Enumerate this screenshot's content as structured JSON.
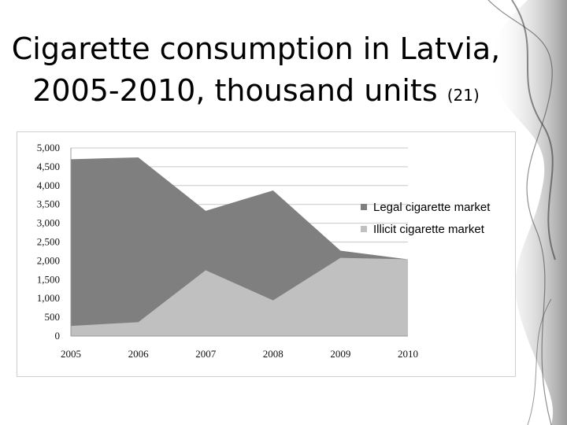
{
  "slide": {
    "title_line1": "Cigarette consumption in Latvia,",
    "title_line2": "2005-2010, thousand units",
    "title_ref": "(21)"
  },
  "colors": {
    "legal": "#7f7f7f",
    "illicit": "#c0c0c0",
    "grid": "#c8c8c8"
  },
  "chart_data": {
    "type": "area",
    "title": "Cigarette consumption in Latvia, 2005-2010, thousand units",
    "xlabel": "",
    "ylabel": "",
    "x": [
      "2005",
      "2006",
      "2007",
      "2008",
      "2009",
      "2010"
    ],
    "ylim": [
      0,
      5000
    ],
    "yticks": [
      0,
      500,
      1000,
      1500,
      2000,
      2500,
      3000,
      3500,
      4000,
      4500,
      5000
    ],
    "ytick_labels": [
      "0",
      "500",
      "1,000",
      "1,500",
      "2,000",
      "2,500",
      "3,000",
      "3,500",
      "4,000",
      "4,500",
      "5,000"
    ],
    "grid": true,
    "legend_position": "right",
    "series": [
      {
        "name": "Legal cigarette market",
        "values": [
          4700,
          4750,
          3330,
          3870,
          2270,
          1950
        ]
      },
      {
        "name": "Illicit cigarette market",
        "values": [
          270,
          370,
          1750,
          950,
          2080,
          2040
        ]
      }
    ]
  }
}
